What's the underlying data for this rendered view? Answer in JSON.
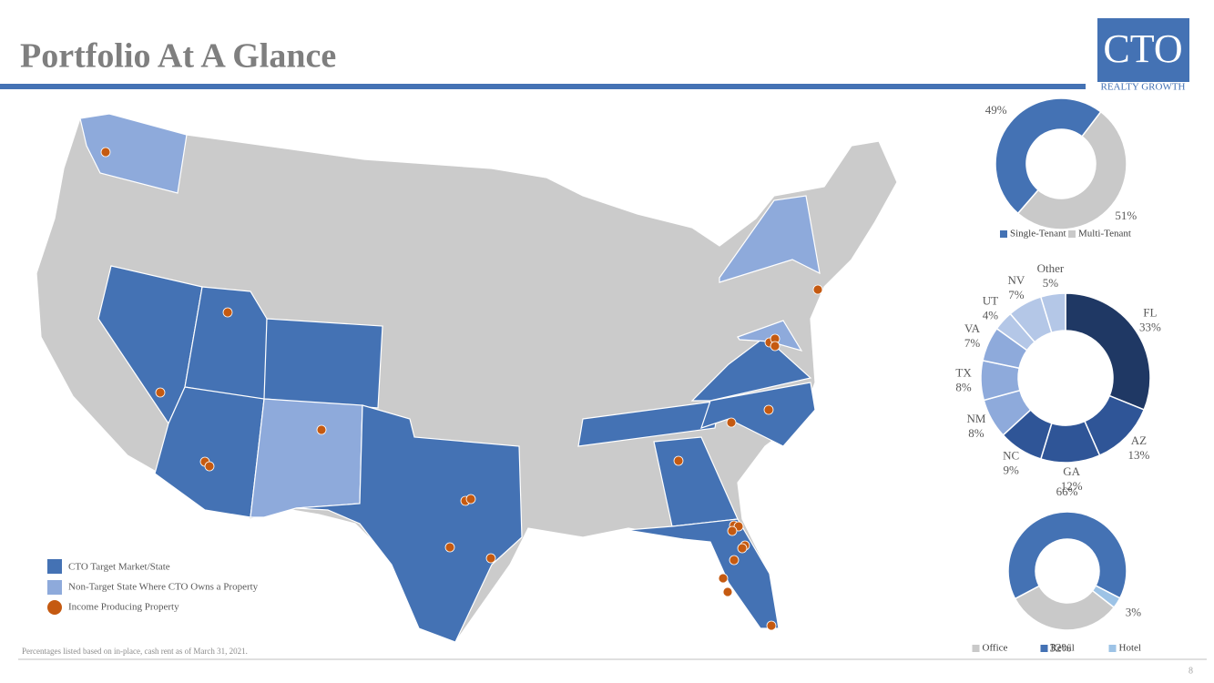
{
  "header": {
    "title": "Portfolio At A Glance"
  },
  "logo": {
    "name": "CTO",
    "tagline": "REALTY GROWTH"
  },
  "map_legend": [
    "CTO Target Market/State",
    "Non-Target State Where CTO Owns a Property",
    "Income Producing Property"
  ],
  "footnote": "Percentages listed based on in-place, cash rent as of March 31, 2021.",
  "page_number": "8",
  "chart_data": [
    {
      "type": "donut",
      "categories": [
        "Single-Tenant",
        "Multi-Tenant"
      ],
      "values": [
        49,
        51
      ],
      "value_labels": [
        "49%",
        "51%"
      ],
      "colors": [
        "#4472b4",
        "#c9c9c9"
      ],
      "legend": "bottom"
    },
    {
      "type": "donut",
      "categories": [
        "FL",
        "AZ",
        "GA",
        "NC",
        "NM",
        "TX",
        "VA",
        "UT",
        "NV",
        "Other"
      ],
      "values": [
        33,
        13,
        12,
        9,
        8,
        8,
        7,
        4,
        7,
        5
      ],
      "value_labels": [
        "33%",
        "13%",
        "12%",
        "9%",
        "8%",
        "8%",
        "7%",
        "4%",
        "7%",
        "5%"
      ],
      "colors": [
        "#1f3864",
        "#2f5597",
        "#2f5597",
        "#2f5597",
        "#8eaadb",
        "#8eaadb",
        "#8eaadb",
        "#b4c7e7",
        "#b4c7e7",
        "#b4c7e7"
      ]
    },
    {
      "type": "donut",
      "categories": [
        "Office",
        "Retail",
        "Hotel"
      ],
      "values": [
        32,
        66,
        3
      ],
      "value_labels": [
        "32%",
        "66%",
        "3%"
      ],
      "colors": [
        "#c9c9c9",
        "#4472b4",
        "#9dc3e6"
      ],
      "legend": "bottom"
    }
  ]
}
